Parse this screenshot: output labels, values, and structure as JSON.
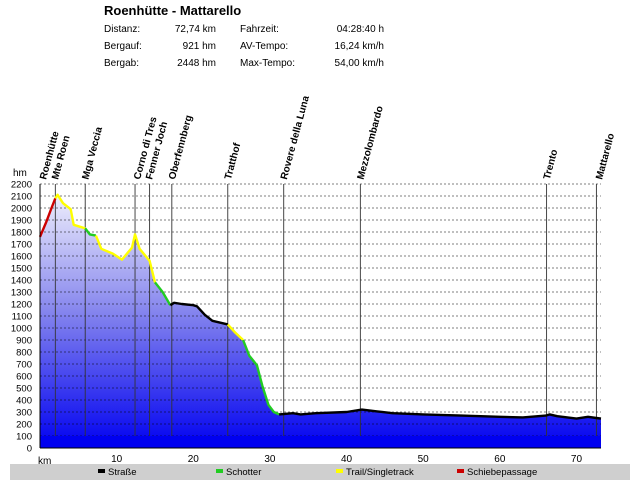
{
  "header": {
    "title": "Roenhütte - Mattarello",
    "stats": [
      {
        "label": "Distanz:",
        "value": "72,74 km"
      },
      {
        "label": "Bergauf:",
        "value": "921 hm"
      },
      {
        "label": "Bergab:",
        "value": "2448 hm"
      },
      {
        "label": "Fahrzeit:",
        "value": "04:28:40 h"
      },
      {
        "label": "AV-Tempo:",
        "value": "16,24 km/h"
      },
      {
        "label": "Max-Tempo:",
        "value": "54,00 km/h"
      }
    ]
  },
  "chart_data": {
    "type": "area",
    "xlabel": "km",
    "ylabel": "hm",
    "xlim": [
      0,
      73.2
    ],
    "ylim": [
      0,
      2200
    ],
    "x_ticks": [
      10,
      20,
      30,
      40,
      50,
      60,
      70
    ],
    "y_ticks": [
      0,
      100,
      200,
      300,
      400,
      500,
      600,
      700,
      800,
      900,
      1000,
      1100,
      1200,
      1300,
      1400,
      1500,
      1600,
      1700,
      1800,
      1900,
      2000,
      2100,
      2200
    ],
    "grid": true,
    "waypoints": [
      {
        "name": "Roenhütte",
        "km": 0.1
      },
      {
        "name": "Mte Roen",
        "km": 2.0
      },
      {
        "name": "Mga Veccia",
        "km": 5.9
      },
      {
        "name": "Corno di Tres",
        "km": 12.4
      },
      {
        "name": "Fenner Joch",
        "km": 14.3
      },
      {
        "name": "Oberfennberg",
        "km": 17.2
      },
      {
        "name": "Tratthof",
        "km": 24.5
      },
      {
        "name": "Rovere della Luna",
        "km": 31.8
      },
      {
        "name": "Mezzolombardo",
        "km": 41.8
      },
      {
        "name": "Trento",
        "km": 66.1
      },
      {
        "name": "Mattarello",
        "km": 72.6
      }
    ],
    "legend": [
      {
        "name": "Straße",
        "color": "#000000"
      },
      {
        "name": "Schotter",
        "color": "#22cc22"
      },
      {
        "name": "Trail/Singletrack",
        "color": "#ffff00"
      },
      {
        "name": "Schiebepassage",
        "color": "#cc0000"
      }
    ],
    "segments": [
      {
        "type": "Schiebepassage",
        "points": [
          [
            0,
            1760
          ],
          [
            0.8,
            1880
          ],
          [
            1.5,
            2000
          ],
          [
            2.0,
            2080
          ]
        ]
      },
      {
        "type": "Trail/Singletrack",
        "points": [
          [
            2.0,
            2080
          ],
          [
            2.3,
            2110
          ],
          [
            3.0,
            2040
          ],
          [
            4.0,
            1990
          ],
          [
            4.4,
            1860
          ],
          [
            5.4,
            1840
          ],
          [
            5.9,
            1830
          ]
        ]
      },
      {
        "type": "Schotter",
        "points": [
          [
            5.9,
            1830
          ],
          [
            6.5,
            1780
          ],
          [
            7.3,
            1770
          ]
        ]
      },
      {
        "type": "Trail/Singletrack",
        "points": [
          [
            7.3,
            1770
          ],
          [
            8.0,
            1660
          ],
          [
            9.5,
            1620
          ],
          [
            10.7,
            1570
          ],
          [
            12.0,
            1670
          ],
          [
            12.4,
            1780
          ],
          [
            13.0,
            1660
          ],
          [
            14.3,
            1560
          ],
          [
            15.0,
            1380
          ]
        ]
      },
      {
        "type": "Schotter",
        "points": [
          [
            15.0,
            1380
          ],
          [
            16.0,
            1300
          ],
          [
            17.0,
            1190
          ]
        ]
      },
      {
        "type": "Straße",
        "points": [
          [
            17.0,
            1190
          ],
          [
            17.5,
            1210
          ],
          [
            18.5,
            1200
          ],
          [
            20.0,
            1190
          ],
          [
            20.5,
            1180
          ],
          [
            21.5,
            1110
          ],
          [
            22.5,
            1060
          ],
          [
            24.5,
            1030
          ]
        ]
      },
      {
        "type": "Trail/Singletrack",
        "points": [
          [
            24.5,
            1030
          ],
          [
            25.5,
            960
          ],
          [
            26.5,
            900
          ]
        ]
      },
      {
        "type": "Schotter",
        "points": [
          [
            26.5,
            900
          ],
          [
            27.3,
            770
          ],
          [
            28.3,
            690
          ],
          [
            29.0,
            520
          ],
          [
            29.8,
            360
          ],
          [
            30.5,
            300
          ],
          [
            31.2,
            280
          ]
        ]
      },
      {
        "type": "Straße",
        "points": [
          [
            31.2,
            280
          ],
          [
            33,
            290
          ],
          [
            34,
            280
          ],
          [
            36,
            290
          ],
          [
            40,
            300
          ],
          [
            42,
            320
          ],
          [
            44,
            305
          ],
          [
            46,
            290
          ],
          [
            50,
            280
          ],
          [
            55,
            270
          ],
          [
            60,
            260
          ],
          [
            63,
            255
          ],
          [
            66.0,
            270
          ],
          [
            66.5,
            280
          ],
          [
            67.5,
            265
          ],
          [
            70,
            245
          ],
          [
            71.5,
            260
          ],
          [
            72.6,
            250
          ],
          [
            73.2,
            245
          ]
        ]
      }
    ]
  }
}
